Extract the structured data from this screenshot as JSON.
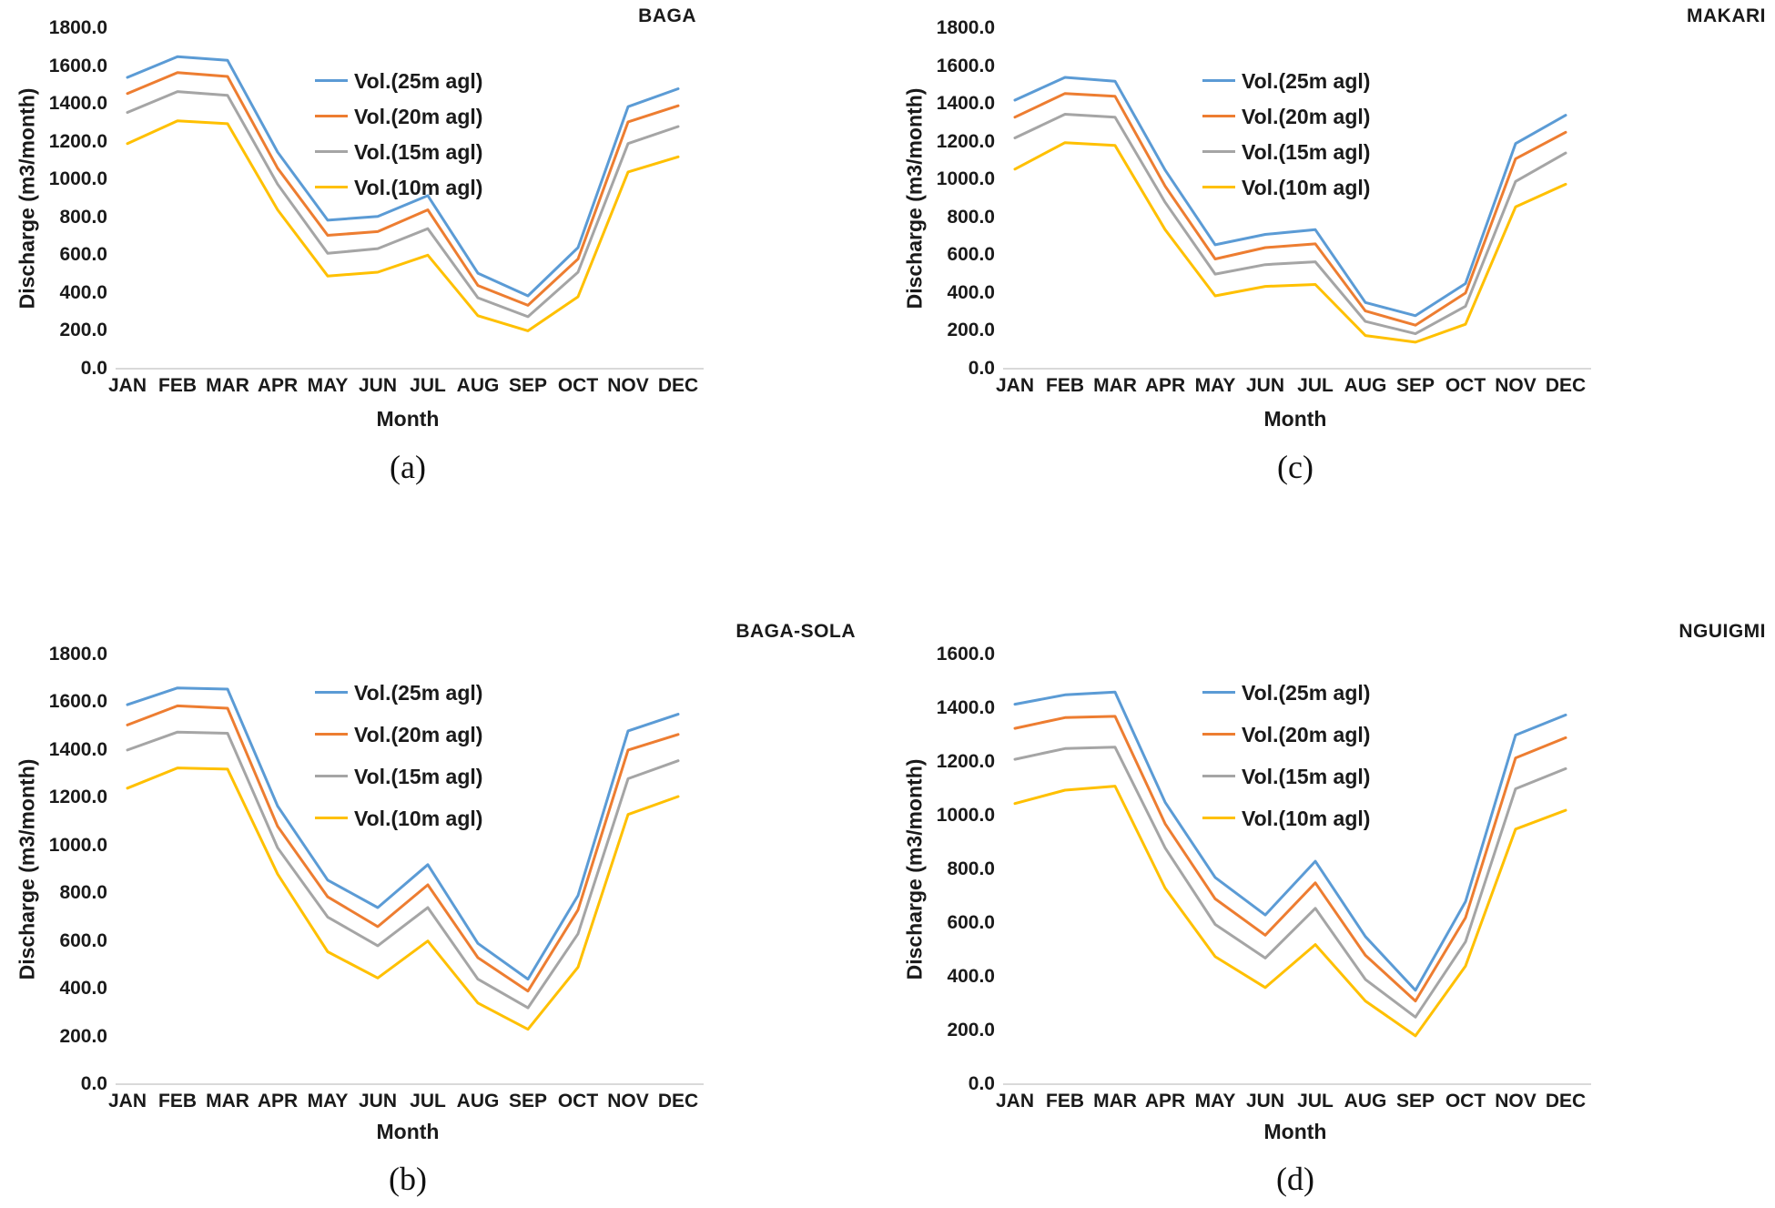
{
  "colors": {
    "series_blue": "#5B9BD5",
    "series_orange": "#ED7D31",
    "series_gray": "#A5A5A5",
    "series_yellow": "#FFC000",
    "axis_line": "#d9d9d9",
    "text": "#1a1a1a"
  },
  "chart_data": [
    {
      "type": "line",
      "title": "BAGA",
      "panel_label": "(a)",
      "position": "top-left",
      "xlabel": "Month",
      "ylabel": "Discharge (m3/month)",
      "ylim": [
        0,
        1800
      ],
      "ytick_step": 200,
      "ytick_labels": [
        "1800.0",
        "1600.0",
        "1400.0",
        "1200.0",
        "1000.0",
        "800.0",
        "600.0",
        "400.0",
        "200.0",
        "0.0"
      ],
      "categories": [
        "JAN",
        "FEB",
        "MAR",
        "APR",
        "MAY",
        "JUN",
        "JUL",
        "AUG",
        "SEP",
        "OCT",
        "NOV",
        "DEC"
      ],
      "grid": false,
      "legend_position": "inside-top",
      "series": [
        {
          "name": "Vol.(25m agl)",
          "color": "#5B9BD5",
          "values": [
            1540,
            1650,
            1630,
            1145,
            785,
            805,
            915,
            505,
            385,
            640,
            1385,
            1480
          ]
        },
        {
          "name": "Vol.(20m agl)",
          "color": "#ED7D31",
          "values": [
            1455,
            1565,
            1545,
            1060,
            705,
            725,
            840,
            440,
            335,
            580,
            1305,
            1390
          ]
        },
        {
          "name": "Vol.(15m agl)",
          "color": "#A5A5A5",
          "values": [
            1355,
            1465,
            1445,
            975,
            610,
            635,
            740,
            375,
            275,
            510,
            1190,
            1280
          ]
        },
        {
          "name": "Vol.(10m agl)",
          "color": "#FFC000",
          "values": [
            1190,
            1310,
            1295,
            840,
            490,
            510,
            600,
            280,
            200,
            380,
            1040,
            1120
          ]
        }
      ]
    },
    {
      "type": "line",
      "title": "MAKARI",
      "panel_label": "(c)",
      "position": "top-right",
      "xlabel": "Month",
      "ylabel": "Discharge (m3/month)",
      "ylim": [
        0,
        1800
      ],
      "ytick_step": 200,
      "ytick_labels": [
        "1800.0",
        "1600.0",
        "1400.0",
        "1200.0",
        "1000.0",
        "800.0",
        "600.0",
        "400.0",
        "200.0",
        "0.0"
      ],
      "categories": [
        "JAN",
        "FEB",
        "MAR",
        "APR",
        "MAY",
        "JUN",
        "JUL",
        "AUG",
        "SEP",
        "OCT",
        "NOV",
        "DEC"
      ],
      "grid": false,
      "legend_position": "inside-top",
      "series": [
        {
          "name": "Vol.(25m agl)",
          "color": "#5B9BD5",
          "values": [
            1420,
            1540,
            1520,
            1050,
            655,
            710,
            735,
            350,
            280,
            450,
            1190,
            1340
          ]
        },
        {
          "name": "Vol.(20m agl)",
          "color": "#ED7D31",
          "values": [
            1330,
            1455,
            1440,
            965,
            580,
            640,
            660,
            305,
            230,
            400,
            1110,
            1250
          ]
        },
        {
          "name": "Vol.(15m agl)",
          "color": "#A5A5A5",
          "values": [
            1220,
            1345,
            1330,
            880,
            500,
            550,
            565,
            250,
            185,
            330,
            990,
            1140
          ]
        },
        {
          "name": "Vol.(10m agl)",
          "color": "#FFC000",
          "values": [
            1055,
            1195,
            1180,
            735,
            385,
            435,
            445,
            175,
            140,
            235,
            855,
            975
          ]
        }
      ]
    },
    {
      "type": "line",
      "title": "BAGA-SOLA",
      "panel_label": "(b)",
      "position": "bottom-left",
      "xlabel": "Month",
      "ylabel": "Discharge (m3/month)",
      "ylim": [
        0,
        1800
      ],
      "ytick_step": 200,
      "ytick_labels": [
        "1800.0",
        "1600.0",
        "1400.0",
        "1200.0",
        "1000.0",
        "800.0",
        "600.0",
        "400.0",
        "200.0",
        "0.0"
      ],
      "categories": [
        "JAN",
        "FEB",
        "MAR",
        "APR",
        "MAY",
        "JUN",
        "JUL",
        "AUG",
        "SEP",
        "OCT",
        "NOV",
        "DEC"
      ],
      "grid": false,
      "legend_position": "inside-top",
      "series": [
        {
          "name": "Vol.(25m agl)",
          "color": "#5B9BD5",
          "values": [
            1590,
            1660,
            1655,
            1165,
            855,
            740,
            920,
            590,
            440,
            790,
            1480,
            1550
          ]
        },
        {
          "name": "Vol.(20m agl)",
          "color": "#ED7D31",
          "values": [
            1505,
            1585,
            1575,
            1080,
            785,
            660,
            835,
            530,
            390,
            730,
            1400,
            1465
          ]
        },
        {
          "name": "Vol.(15m agl)",
          "color": "#A5A5A5",
          "values": [
            1400,
            1475,
            1470,
            990,
            700,
            580,
            740,
            440,
            320,
            630,
            1280,
            1355
          ]
        },
        {
          "name": "Vol.(10m agl)",
          "color": "#FFC000",
          "values": [
            1240,
            1325,
            1320,
            880,
            555,
            445,
            600,
            340,
            230,
            490,
            1130,
            1205
          ]
        }
      ]
    },
    {
      "type": "line",
      "title": "NGUIGMI",
      "panel_label": "(d)",
      "position": "bottom-right",
      "xlabel": "Month",
      "ylabel": "Discharge (m3/month)",
      "ylim": [
        0,
        1600
      ],
      "ytick_step": 200,
      "ytick_labels": [
        "1600.0",
        "1400.0",
        "1200.0",
        "1000.0",
        "800.0",
        "600.0",
        "400.0",
        "200.0",
        "0.0"
      ],
      "categories": [
        "JAN",
        "FEB",
        "MAR",
        "APR",
        "MAY",
        "JUN",
        "JUL",
        "AUG",
        "SEP",
        "OCT",
        "NOV",
        "DEC"
      ],
      "grid": false,
      "legend_position": "inside-top",
      "series": [
        {
          "name": "Vol.(25m agl)",
          "color": "#5B9BD5",
          "values": [
            1415,
            1450,
            1460,
            1050,
            770,
            630,
            830,
            550,
            350,
            680,
            1300,
            1375
          ]
        },
        {
          "name": "Vol.(20m agl)",
          "color": "#ED7D31",
          "values": [
            1325,
            1365,
            1370,
            970,
            690,
            555,
            750,
            480,
            310,
            620,
            1215,
            1290
          ]
        },
        {
          "name": "Vol.(15m agl)",
          "color": "#A5A5A5",
          "values": [
            1210,
            1250,
            1255,
            880,
            595,
            470,
            655,
            390,
            250,
            530,
            1100,
            1175
          ]
        },
        {
          "name": "Vol.(10m agl)",
          "color": "#FFC000",
          "values": [
            1045,
            1095,
            1110,
            730,
            475,
            360,
            520,
            310,
            180,
            440,
            950,
            1020
          ]
        }
      ]
    }
  ]
}
